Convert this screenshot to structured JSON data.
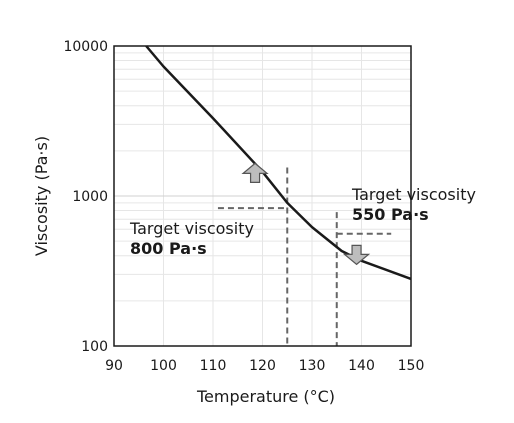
{
  "chart_data": {
    "type": "line",
    "title": "",
    "xlabel": "Temperature (°C)",
    "ylabel": "Viscosity (Pa·s)",
    "xlim": [
      90,
      150
    ],
    "ylim": [
      100,
      10000
    ],
    "yscale": "log",
    "grid": true,
    "xticks": [
      "90",
      "100",
      "110",
      "120",
      "130",
      "140",
      "150"
    ],
    "yticks": [
      "100",
      "1000",
      "10000"
    ],
    "series": [
      {
        "x": [
          96.5,
          100,
          110,
          120,
          125,
          130,
          136,
          140,
          150
        ],
        "y": [
          10000,
          7300,
          3300,
          1450,
          900,
          620,
          430,
          370,
          280
        ]
      }
    ],
    "annotations": [
      {
        "text": "Target viscosity",
        "value_text": "800 Pa·s",
        "temperature": 125,
        "viscosity": 830,
        "arrow": "up",
        "guide_from_x": 111
      },
      {
        "text": "Target viscosity",
        "value_text": "550 Pa·s",
        "temperature": 135,
        "viscosity": 560,
        "arrow": "down",
        "guide_to_x": 146
      }
    ],
    "colors": {
      "line": "#1a1a1a",
      "guide": "#666666",
      "arrow_fill": "#bdbdbd",
      "arrow_stroke": "#555555",
      "grid": "#e6e6e6"
    }
  }
}
